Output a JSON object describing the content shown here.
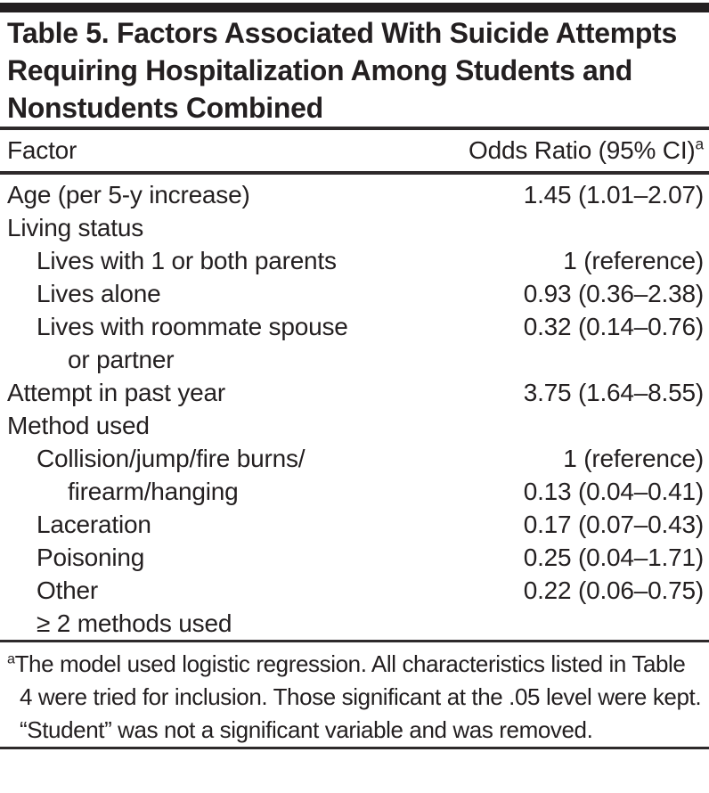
{
  "page": {
    "background": "#ffffff",
    "text_color": "#231f20",
    "rule_color": "#231f20"
  },
  "table": {
    "title": "Table 5. Factors Associated With Suicide Attempts Requiring Hospitalization Among Students and Nonstudents Combined",
    "header": {
      "factor": "Factor",
      "odds_ratio": "Odds Ratio (95% CI)",
      "odds_ratio_sup": "a"
    },
    "rows": [
      {
        "label": "Age (per 5-y increase)",
        "indent": 0,
        "value": "1.45 (1.01–2.07)"
      },
      {
        "label": "Living status",
        "indent": 0,
        "value": ""
      },
      {
        "label": "Lives with 1 or both parents",
        "indent": 1,
        "value": "1 (reference)"
      },
      {
        "label": "Lives alone",
        "indent": 1,
        "value": "0.93 (0.36–2.38)"
      },
      {
        "label": "Lives with roommate spouse",
        "indent": 1,
        "value": "0.32 (0.14–0.76)"
      },
      {
        "label": "or partner",
        "indent": 2,
        "value": ""
      },
      {
        "label": "Attempt in past year",
        "indent": 0,
        "value": "3.75 (1.64–8.55)"
      },
      {
        "label": "Method used",
        "indent": 0,
        "value": ""
      },
      {
        "label": "Collision/jump/fire burns/",
        "indent": 1,
        "value": "1 (reference)"
      },
      {
        "label": "firearm/hanging",
        "indent": 2,
        "value": "0.13 (0.04–0.41)"
      },
      {
        "label": "Laceration",
        "indent": 1,
        "value": "0.17 (0.07–0.43)"
      },
      {
        "label": "Poisoning",
        "indent": 1,
        "value": "0.25 (0.04–1.71)"
      },
      {
        "label": "Other",
        "indent": 1,
        "value": "0.22 (0.06–0.75)"
      },
      {
        "label": "≥ 2 methods used",
        "indent": 1,
        "value": ""
      }
    ],
    "footnote": {
      "marker": "a",
      "text": "The model used logistic regression. All characteristics listed in Table 4 were tried for inclusion. Those significant at the .05 level were kept. “Student” was not a significant variable and was removed."
    }
  }
}
